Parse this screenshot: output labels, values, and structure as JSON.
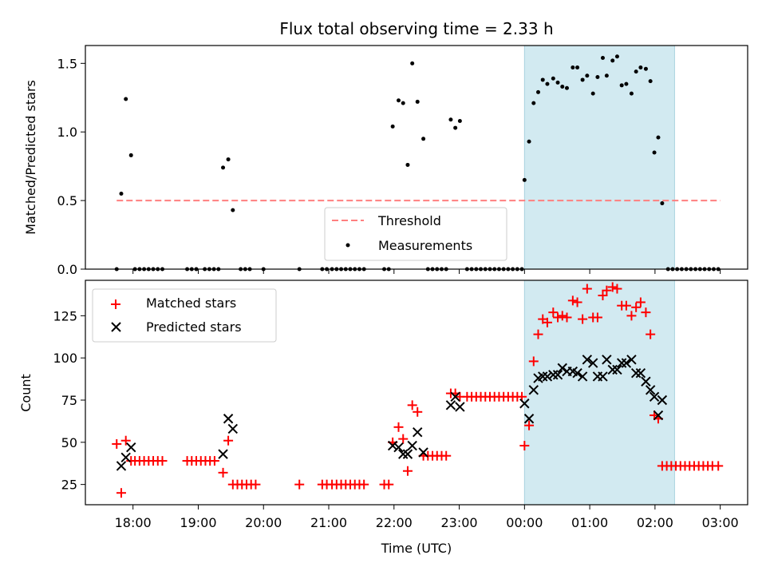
{
  "title": "Flux total observing time = 2.33 h",
  "colors": {
    "threshold": "#ff7f7f",
    "measurement": "#000000",
    "matched": "#ff0000",
    "predicted": "#000000",
    "highlight": "#add8e6"
  },
  "chart_data": [
    {
      "type": "scatter",
      "ylabel": "Matched/Predicted stars",
      "ylim": [
        0,
        1.63
      ],
      "yticks": [
        0.0,
        0.5,
        1.0,
        1.5
      ],
      "ytick_labels": [
        "0.0",
        "0.5",
        "1.0",
        "1.5"
      ],
      "xlim": [
        17.27,
        27.42
      ],
      "highlight_span": {
        "from": 24.0,
        "to": 26.3
      },
      "threshold": {
        "value": 0.5,
        "x_from": 17.75,
        "x_to": 27.0
      },
      "legend": {
        "position": "lower-center",
        "entries": [
          "Threshold",
          "Measurements"
        ]
      },
      "series": [
        {
          "name": "Measurements",
          "marker": "dot",
          "points": [
            [
              17.75,
              0
            ],
            [
              17.82,
              0.55
            ],
            [
              17.89,
              1.24
            ],
            [
              17.97,
              0.83
            ],
            [
              18.03,
              0
            ],
            [
              18.1,
              0
            ],
            [
              18.17,
              0
            ],
            [
              18.24,
              0
            ],
            [
              18.31,
              0
            ],
            [
              18.38,
              0
            ],
            [
              18.45,
              0
            ],
            [
              18.83,
              0
            ],
            [
              18.9,
              0
            ],
            [
              18.97,
              0
            ],
            [
              19.1,
              0
            ],
            [
              19.17,
              0
            ],
            [
              19.24,
              0
            ],
            [
              19.31,
              0
            ],
            [
              19.38,
              0.74
            ],
            [
              19.46,
              0.8
            ],
            [
              19.53,
              0.43
            ],
            [
              19.65,
              0
            ],
            [
              19.72,
              0
            ],
            [
              19.79,
              0
            ],
            [
              20.0,
              0
            ],
            [
              20.55,
              0
            ],
            [
              20.9,
              0
            ],
            [
              20.97,
              0
            ],
            [
              21.05,
              0
            ],
            [
              21.12,
              0
            ],
            [
              21.19,
              0
            ],
            [
              21.26,
              0
            ],
            [
              21.33,
              0
            ],
            [
              21.4,
              0
            ],
            [
              21.47,
              0
            ],
            [
              21.54,
              0
            ],
            [
              21.85,
              0
            ],
            [
              21.92,
              0
            ],
            [
              21.98,
              1.04
            ],
            [
              22.07,
              1.23
            ],
            [
              22.14,
              1.21
            ],
            [
              22.21,
              0.76
            ],
            [
              22.28,
              1.5
            ],
            [
              22.36,
              1.22
            ],
            [
              22.45,
              0.95
            ],
            [
              22.52,
              0
            ],
            [
              22.59,
              0
            ],
            [
              22.66,
              0
            ],
            [
              22.73,
              0
            ],
            [
              22.8,
              0
            ],
            [
              22.87,
              1.09
            ],
            [
              22.94,
              1.03
            ],
            [
              23.01,
              1.08
            ],
            [
              23.12,
              0
            ],
            [
              23.19,
              0
            ],
            [
              23.26,
              0
            ],
            [
              23.33,
              0
            ],
            [
              23.4,
              0
            ],
            [
              23.47,
              0
            ],
            [
              23.54,
              0
            ],
            [
              23.61,
              0
            ],
            [
              23.68,
              0
            ],
            [
              23.75,
              0
            ],
            [
              23.82,
              0
            ],
            [
              23.89,
              0
            ],
            [
              23.96,
              0
            ],
            [
              24.0,
              0.65
            ],
            [
              24.07,
              0.93
            ],
            [
              24.14,
              1.21
            ],
            [
              24.21,
              1.29
            ],
            [
              24.28,
              1.38
            ],
            [
              24.35,
              1.35
            ],
            [
              24.44,
              1.39
            ],
            [
              24.51,
              1.36
            ],
            [
              24.58,
              1.33
            ],
            [
              24.65,
              1.32
            ],
            [
              24.74,
              1.47
            ],
            [
              24.81,
              1.47
            ],
            [
              24.89,
              1.38
            ],
            [
              24.96,
              1.41
            ],
            [
              25.05,
              1.28
            ],
            [
              25.12,
              1.4
            ],
            [
              25.2,
              1.54
            ],
            [
              25.26,
              1.41
            ],
            [
              25.35,
              1.52
            ],
            [
              25.42,
              1.55
            ],
            [
              25.49,
              1.34
            ],
            [
              25.56,
              1.35
            ],
            [
              25.64,
              1.28
            ],
            [
              25.71,
              1.44
            ],
            [
              25.78,
              1.47
            ],
            [
              25.86,
              1.46
            ],
            [
              25.93,
              1.37
            ],
            [
              25.99,
              0.85
            ],
            [
              26.05,
              0.96
            ],
            [
              26.11,
              0.48
            ],
            [
              26.2,
              0
            ],
            [
              26.27,
              0
            ],
            [
              26.34,
              0
            ],
            [
              26.41,
              0
            ],
            [
              26.48,
              0
            ],
            [
              26.55,
              0
            ],
            [
              26.62,
              0
            ],
            [
              26.69,
              0
            ],
            [
              26.76,
              0
            ],
            [
              26.83,
              0
            ],
            [
              26.9,
              0
            ],
            [
              26.97,
              0
            ]
          ]
        }
      ]
    },
    {
      "type": "scatter",
      "xlabel": "Time (UTC)",
      "ylabel": "Count",
      "ylim": [
        13,
        146
      ],
      "yticks": [
        25,
        50,
        75,
        100,
        125
      ],
      "ytick_labels": [
        "25",
        "50",
        "75",
        "100",
        "125"
      ],
      "xlim": [
        17.27,
        27.42
      ],
      "xticks": [
        18,
        19,
        20,
        21,
        22,
        23,
        24,
        25,
        26,
        27
      ],
      "xtick_labels": [
        "18:00",
        "19:00",
        "20:00",
        "21:00",
        "22:00",
        "23:00",
        "00:00",
        "01:00",
        "02:00",
        "03:00"
      ],
      "highlight_span": {
        "from": 24.0,
        "to": 26.3
      },
      "legend": {
        "position": "top-left",
        "entries": [
          "Matched stars",
          "Predicted stars"
        ]
      },
      "series": [
        {
          "name": "Matched stars",
          "marker": "plus",
          "points": [
            [
              17.75,
              49
            ],
            [
              17.82,
              20
            ],
            [
              17.89,
              51
            ],
            [
              17.97,
              39
            ],
            [
              18.03,
              39
            ],
            [
              18.1,
              39
            ],
            [
              18.17,
              39
            ],
            [
              18.24,
              39
            ],
            [
              18.31,
              39
            ],
            [
              18.38,
              39
            ],
            [
              18.45,
              39
            ],
            [
              18.83,
              39
            ],
            [
              18.9,
              39
            ],
            [
              18.97,
              39
            ],
            [
              19.04,
              39
            ],
            [
              19.11,
              39
            ],
            [
              19.18,
              39
            ],
            [
              19.25,
              39
            ],
            [
              19.38,
              32
            ],
            [
              19.46,
              51
            ],
            [
              19.53,
              25
            ],
            [
              19.6,
              25
            ],
            [
              19.67,
              25
            ],
            [
              19.74,
              25
            ],
            [
              19.81,
              25
            ],
            [
              19.88,
              25
            ],
            [
              20.55,
              25
            ],
            [
              20.9,
              25
            ],
            [
              20.97,
              25
            ],
            [
              21.05,
              25
            ],
            [
              21.12,
              25
            ],
            [
              21.19,
              25
            ],
            [
              21.26,
              25
            ],
            [
              21.33,
              25
            ],
            [
              21.4,
              25
            ],
            [
              21.47,
              25
            ],
            [
              21.54,
              25
            ],
            [
              21.85,
              25
            ],
            [
              21.92,
              25
            ],
            [
              21.98,
              50
            ],
            [
              22.07,
              59
            ],
            [
              22.14,
              52
            ],
            [
              22.21,
              33
            ],
            [
              22.28,
              72
            ],
            [
              22.36,
              68
            ],
            [
              22.45,
              42
            ],
            [
              22.52,
              42
            ],
            [
              22.59,
              42
            ],
            [
              22.66,
              42
            ],
            [
              22.73,
              42
            ],
            [
              22.8,
              42
            ],
            [
              22.87,
              79
            ],
            [
              22.94,
              79
            ],
            [
              23.01,
              77
            ],
            [
              23.12,
              77
            ],
            [
              23.19,
              77
            ],
            [
              23.26,
              77
            ],
            [
              23.33,
              77
            ],
            [
              23.4,
              77
            ],
            [
              23.47,
              77
            ],
            [
              23.54,
              77
            ],
            [
              23.61,
              77
            ],
            [
              23.68,
              77
            ],
            [
              23.75,
              77
            ],
            [
              23.82,
              77
            ],
            [
              23.89,
              77
            ],
            [
              23.96,
              77
            ],
            [
              24.0,
              48
            ],
            [
              24.07,
              60
            ],
            [
              24.14,
              98
            ],
            [
              24.21,
              114
            ],
            [
              24.28,
              123
            ],
            [
              24.35,
              121
            ],
            [
              24.44,
              127
            ],
            [
              24.51,
              124
            ],
            [
              24.58,
              125
            ],
            [
              24.65,
              124
            ],
            [
              24.74,
              134
            ],
            [
              24.81,
              133
            ],
            [
              24.89,
              123
            ],
            [
              24.96,
              141
            ],
            [
              25.05,
              124
            ],
            [
              25.12,
              124
            ],
            [
              25.2,
              137
            ],
            [
              25.26,
              140
            ],
            [
              25.35,
              142
            ],
            [
              25.42,
              141
            ],
            [
              25.49,
              131
            ],
            [
              25.56,
              131
            ],
            [
              25.64,
              125
            ],
            [
              25.71,
              130
            ],
            [
              25.78,
              133
            ],
            [
              25.86,
              127
            ],
            [
              25.93,
              114
            ],
            [
              25.99,
              66
            ],
            [
              26.05,
              64
            ],
            [
              26.11,
              36
            ],
            [
              26.18,
              36
            ],
            [
              26.25,
              36
            ],
            [
              26.32,
              36
            ],
            [
              26.39,
              36
            ],
            [
              26.46,
              36
            ],
            [
              26.53,
              36
            ],
            [
              26.6,
              36
            ],
            [
              26.67,
              36
            ],
            [
              26.74,
              36
            ],
            [
              26.81,
              36
            ],
            [
              26.88,
              36
            ],
            [
              26.97,
              36
            ]
          ]
        },
        {
          "name": "Predicted stars",
          "marker": "cross",
          "points": [
            [
              17.82,
              36
            ],
            [
              17.89,
              41
            ],
            [
              17.97,
              47
            ],
            [
              19.38,
              43
            ],
            [
              19.46,
              64
            ],
            [
              19.53,
              58
            ],
            [
              21.98,
              48
            ],
            [
              22.07,
              47
            ],
            [
              22.14,
              43
            ],
            [
              22.21,
              43
            ],
            [
              22.28,
              48
            ],
            [
              22.36,
              56
            ],
            [
              22.45,
              44
            ],
            [
              22.87,
              72
            ],
            [
              22.94,
              77
            ],
            [
              23.01,
              71
            ],
            [
              24.0,
              73
            ],
            [
              24.07,
              64
            ],
            [
              24.14,
              81
            ],
            [
              24.21,
              88
            ],
            [
              24.28,
              89
            ],
            [
              24.35,
              89
            ],
            [
              24.44,
              90
            ],
            [
              24.51,
              90
            ],
            [
              24.58,
              94
            ],
            [
              24.65,
              92
            ],
            [
              24.74,
              92
            ],
            [
              24.81,
              91
            ],
            [
              24.89,
              89
            ],
            [
              24.96,
              99
            ],
            [
              25.05,
              97
            ],
            [
              25.12,
              89
            ],
            [
              25.2,
              89
            ],
            [
              25.26,
              99
            ],
            [
              25.35,
              93
            ],
            [
              25.42,
              93
            ],
            [
              25.49,
              97
            ],
            [
              25.56,
              97
            ],
            [
              25.64,
              99
            ],
            [
              25.71,
              91
            ],
            [
              25.78,
              91
            ],
            [
              25.86,
              86
            ],
            [
              25.93,
              81
            ],
            [
              25.99,
              77
            ],
            [
              26.05,
              66
            ],
            [
              26.11,
              75
            ]
          ]
        }
      ]
    }
  ]
}
